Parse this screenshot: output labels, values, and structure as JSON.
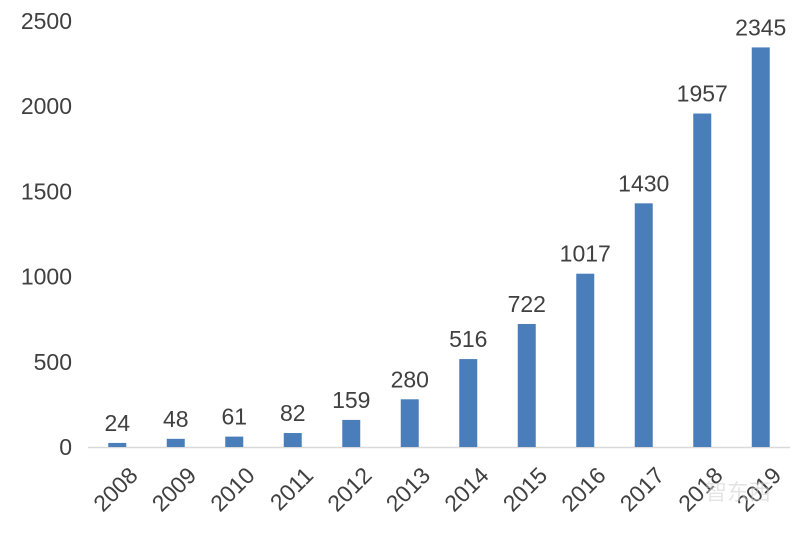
{
  "chart_data": {
    "type": "bar",
    "title": "",
    "xlabel": "",
    "ylabel": "",
    "categories": [
      "2008",
      "2009",
      "2010",
      "2011",
      "2012",
      "2013",
      "2014",
      "2015",
      "2016",
      "2017",
      "2018",
      "2019"
    ],
    "series": [
      {
        "values": [
          24,
          48,
          61,
          82,
          159,
          280,
          516,
          722,
          1017,
          1430,
          1957,
          2345
        ],
        "color": "#4a7ebb"
      }
    ],
    "ylim": [
      0,
      2500
    ],
    "yticks": [
      0,
      500,
      1000,
      1500,
      2000,
      2500
    ],
    "grid": false,
    "legend": "none",
    "x_tick_rotation": "-45deg",
    "data_labels": true,
    "watermark_text": "智东西"
  }
}
